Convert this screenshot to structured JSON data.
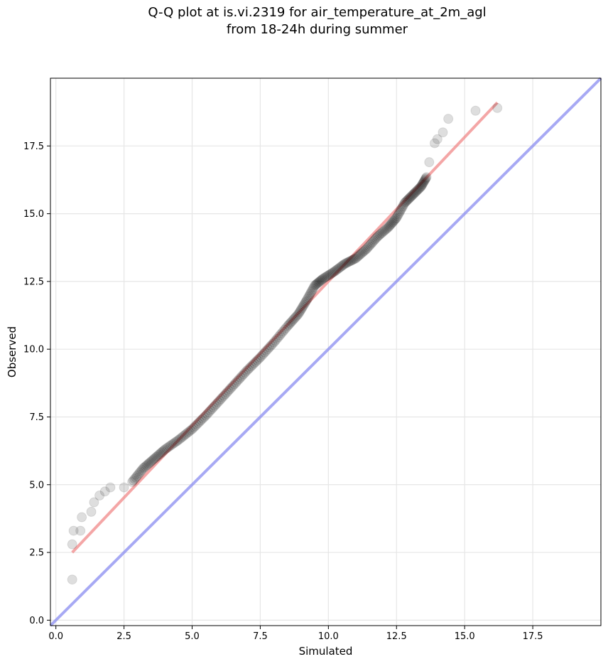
{
  "chart_data": {
    "type": "scatter",
    "title_lines": [
      "Q-Q plot at is.vi.2319 for air_temperature_at_2m_agl",
      "from 18-24h during summer"
    ],
    "xlabel": "Simulated",
    "ylabel": "Observed",
    "xlim": [
      -0.2,
      20.0
    ],
    "ylim": [
      -0.2,
      20.0
    ],
    "xticks": [
      0.0,
      2.5,
      5.0,
      7.5,
      10.0,
      12.5,
      15.0,
      17.5
    ],
    "yticks": [
      0.0,
      2.5,
      5.0,
      7.5,
      10.0,
      12.5,
      15.0,
      17.5
    ],
    "xtick_labels": [
      "0.0",
      "2.5",
      "5.0",
      "7.5",
      "10.0",
      "12.5",
      "15.0",
      "17.5"
    ],
    "ytick_labels": [
      "0.0",
      "2.5",
      "5.0",
      "7.5",
      "10.0",
      "12.5",
      "15.0",
      "17.5"
    ],
    "grid": true,
    "colors": {
      "points": "#000000",
      "fit_line": "#f08080",
      "identity_line": "#8a8cf0",
      "grid": "#e6e6e6"
    },
    "quantile_curve": [
      [
        0.6,
        1.5
      ],
      [
        0.6,
        2.8
      ],
      [
        0.65,
        3.3
      ],
      [
        0.9,
        3.3
      ],
      [
        0.95,
        3.8
      ],
      [
        1.3,
        4.0
      ],
      [
        1.4,
        4.35
      ],
      [
        1.6,
        4.6
      ],
      [
        1.8,
        4.75
      ],
      [
        2.0,
        4.9
      ],
      [
        2.5,
        4.9
      ],
      [
        2.8,
        5.1
      ],
      [
        3.2,
        5.6
      ],
      [
        3.6,
        5.95
      ],
      [
        4.0,
        6.3
      ],
      [
        4.5,
        6.65
      ],
      [
        5.0,
        7.05
      ],
      [
        5.5,
        7.55
      ],
      [
        6.0,
        8.1
      ],
      [
        6.5,
        8.65
      ],
      [
        7.0,
        9.2
      ],
      [
        7.5,
        9.7
      ],
      [
        8.0,
        10.25
      ],
      [
        8.5,
        10.85
      ],
      [
        8.9,
        11.3
      ],
      [
        9.2,
        11.8
      ],
      [
        9.5,
        12.35
      ],
      [
        9.8,
        12.6
      ],
      [
        10.2,
        12.85
      ],
      [
        10.6,
        13.15
      ],
      [
        11.0,
        13.35
      ],
      [
        11.4,
        13.7
      ],
      [
        11.8,
        14.15
      ],
      [
        12.2,
        14.5
      ],
      [
        12.5,
        14.85
      ],
      [
        12.8,
        15.4
      ],
      [
        13.1,
        15.7
      ],
      [
        13.4,
        16.0
      ],
      [
        13.6,
        16.35
      ],
      [
        13.7,
        16.9
      ],
      [
        13.9,
        17.6
      ],
      [
        14.0,
        17.75
      ],
      [
        14.2,
        18.0
      ],
      [
        14.4,
        18.5
      ],
      [
        15.4,
        18.8
      ],
      [
        16.2,
        18.9
      ]
    ],
    "fit_line": {
      "x": [
        0.6,
        16.2
      ],
      "y": [
        2.5,
        19.1
      ]
    },
    "identity_line": {
      "x": [
        -0.2,
        20.0
      ],
      "y": [
        -0.2,
        20.0
      ]
    }
  }
}
